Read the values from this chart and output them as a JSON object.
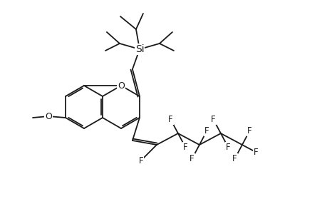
{
  "background": "#ffffff",
  "line_color": "#1a1a1a",
  "line_width": 1.3,
  "text_color": "#1a1a1a",
  "font_size": 8.5,
  "figsize": [
    4.6,
    3.0
  ],
  "dpi": 100,
  "xlim": [
    0,
    4.6
  ],
  "ylim": [
    0,
    3.0
  ]
}
